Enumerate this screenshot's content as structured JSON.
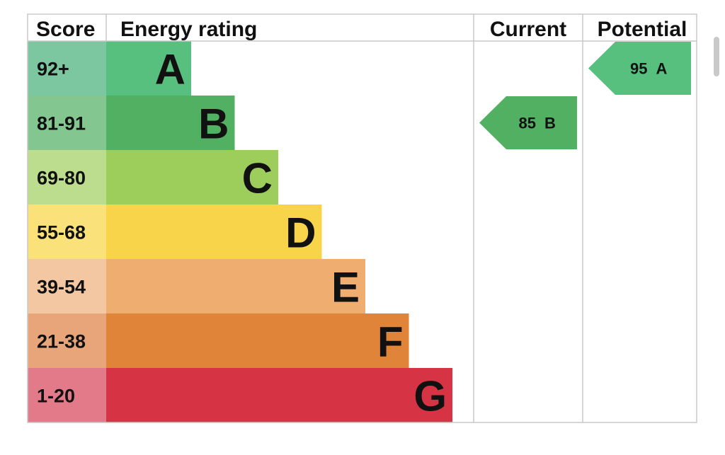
{
  "header": {
    "score": "Score",
    "energy_rating": "Energy rating",
    "current": "Current",
    "potential": "Potential"
  },
  "chart_data": {
    "type": "bar",
    "bands": [
      {
        "letter": "A",
        "range": "92+",
        "min": 92,
        "max": 100,
        "color": "#57c07f",
        "score_bg": "#7cc7a0"
      },
      {
        "letter": "B",
        "range": "81-91",
        "min": 81,
        "max": 91,
        "color": "#52b062",
        "score_bg": "#84c690"
      },
      {
        "letter": "C",
        "range": "69-80",
        "min": 69,
        "max": 80,
        "color": "#9dcd5a",
        "score_bg": "#bcdd8e"
      },
      {
        "letter": "D",
        "range": "55-68",
        "min": 55,
        "max": 68,
        "color": "#f7d44a",
        "score_bg": "#fae179"
      },
      {
        "letter": "E",
        "range": "39-54",
        "min": 39,
        "max": 54,
        "color": "#efad70",
        "score_bg": "#f3c7a1"
      },
      {
        "letter": "F",
        "range": "21-38",
        "min": 21,
        "max": 38,
        "color": "#e0843a",
        "score_bg": "#e8a57a"
      },
      {
        "letter": "G",
        "range": "1-20",
        "min": 1,
        "max": 20,
        "color": "#d63444",
        "score_bg": "#e27a8a"
      }
    ],
    "current": {
      "value": 85,
      "band": "B",
      "color": "#52b062"
    },
    "potential": {
      "value": 95,
      "band": "A",
      "color": "#57c07f"
    }
  }
}
